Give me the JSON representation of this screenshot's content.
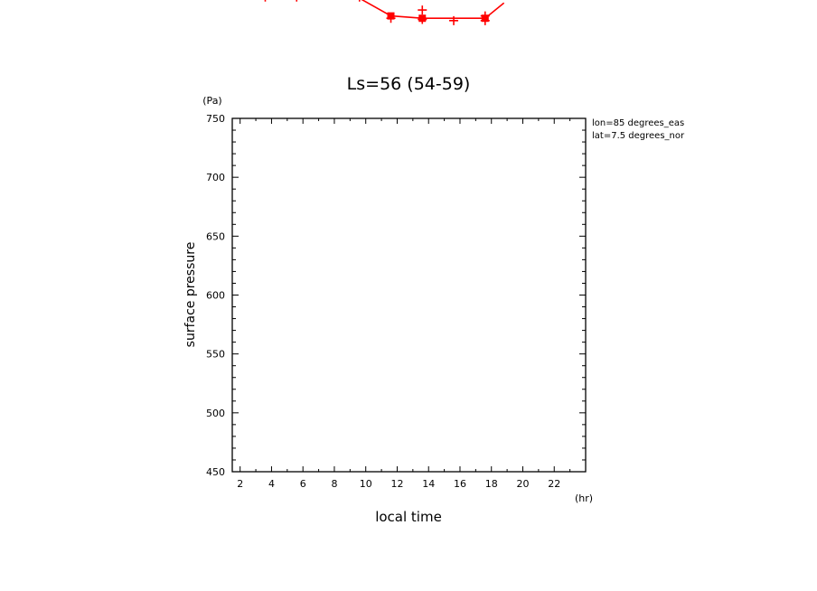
{
  "chart_data": {
    "type": "line",
    "title": "Ls=56 (54-59)",
    "xlabel": "local time",
    "xunit": "(hr)",
    "ylabel": "surface pressure",
    "yunit": "(Pa)",
    "xlim": [
      1.5,
      24
    ],
    "ylim": [
      450,
      750
    ],
    "x_ticks": [
      2,
      4,
      6,
      8,
      10,
      12,
      14,
      16,
      18,
      20,
      22
    ],
    "y_ticks": [
      450,
      500,
      550,
      600,
      650,
      700,
      750
    ],
    "annotations": [
      "lon=85 degrees_eas",
      "lat=7.5 degrees_nor"
    ],
    "grid": false,
    "colors": {
      "series": "#ff0000",
      "axes": "#000000"
    },
    "fragment_series": {
      "line_points": [
        [
          9.6,
          852
        ],
        [
          11.6,
          837
        ],
        [
          13.6,
          835
        ],
        [
          15.6,
          835
        ],
        [
          17.6,
          835
        ],
        [
          18.8,
          848
        ]
      ],
      "square_markers": [
        [
          11.6,
          837
        ],
        [
          13.6,
          835
        ],
        [
          17.6,
          835
        ]
      ],
      "plus_markers": [
        [
          3.6,
          853
        ],
        [
          5.6,
          853
        ],
        [
          9.6,
          853
        ],
        [
          11.6,
          835
        ],
        [
          13.6,
          842
        ],
        [
          13.6,
          834
        ],
        [
          15.6,
          833
        ],
        [
          17.6,
          837
        ],
        [
          17.6,
          833
        ]
      ]
    }
  }
}
